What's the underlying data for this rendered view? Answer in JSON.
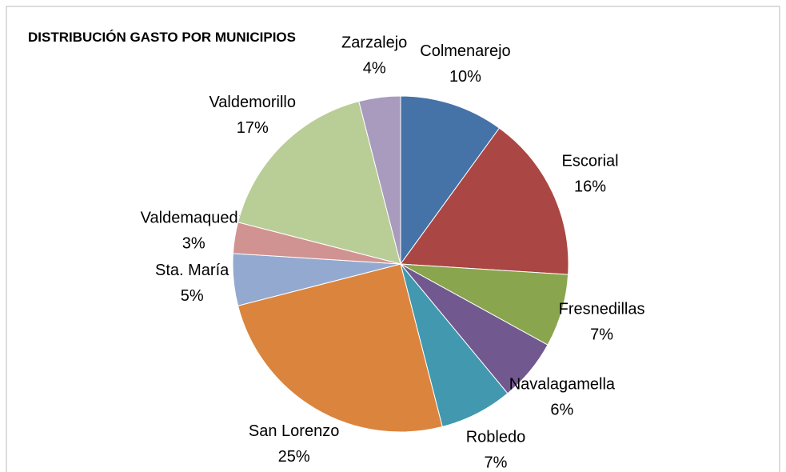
{
  "chart_data": {
    "type": "pie",
    "title": "DISTRIBUCIÓN GASTO POR MUNICIPIOS",
    "categories": [
      "Colmenarejo",
      "Escorial",
      "Fresnedillas",
      "Navalagamella",
      "Robledo",
      "San Lorenzo",
      "Sta. María",
      "Valdemaqueda",
      "Valdemorillo",
      "Zarzalejo"
    ],
    "values": [
      10,
      16,
      7,
      6,
      7,
      25,
      5,
      3,
      17,
      4
    ],
    "value_labels": [
      "10%",
      "16%",
      "7%",
      "6%",
      "7%",
      "25%",
      "5%",
      "3%",
      "17%",
      "4%"
    ],
    "colors": [
      "#4572a7",
      "#aa4643",
      "#89a54e",
      "#71588f",
      "#4198af",
      "#db843d",
      "#93a9cf",
      "#d19392",
      "#b9cd96",
      "#a99bbd"
    ]
  }
}
